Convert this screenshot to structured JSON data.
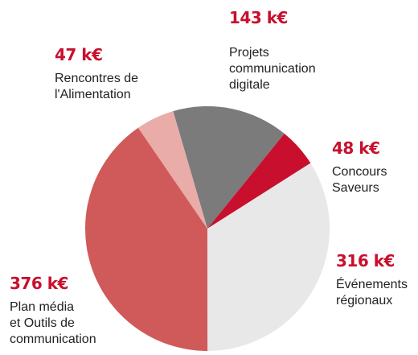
{
  "chart_data": {
    "type": "pie",
    "categories": [
      "Projets\ncommunication\ndigitale",
      "Concours\nSaveurs",
      "Événements\nrégionaux",
      "Plan média\net Outils de\ncommunication",
      "Rencontres de\nl'Alimentation"
    ],
    "values": [
      143,
      48,
      316,
      376,
      47
    ],
    "value_labels": [
      "143 k€",
      "48 k€",
      "316 k€",
      "376 k€",
      "47 k€"
    ],
    "colors": [
      "#7b7b7b",
      "#c8102e",
      "#e8e8e8",
      "#d05a5a",
      "#e9aca8"
    ]
  }
}
